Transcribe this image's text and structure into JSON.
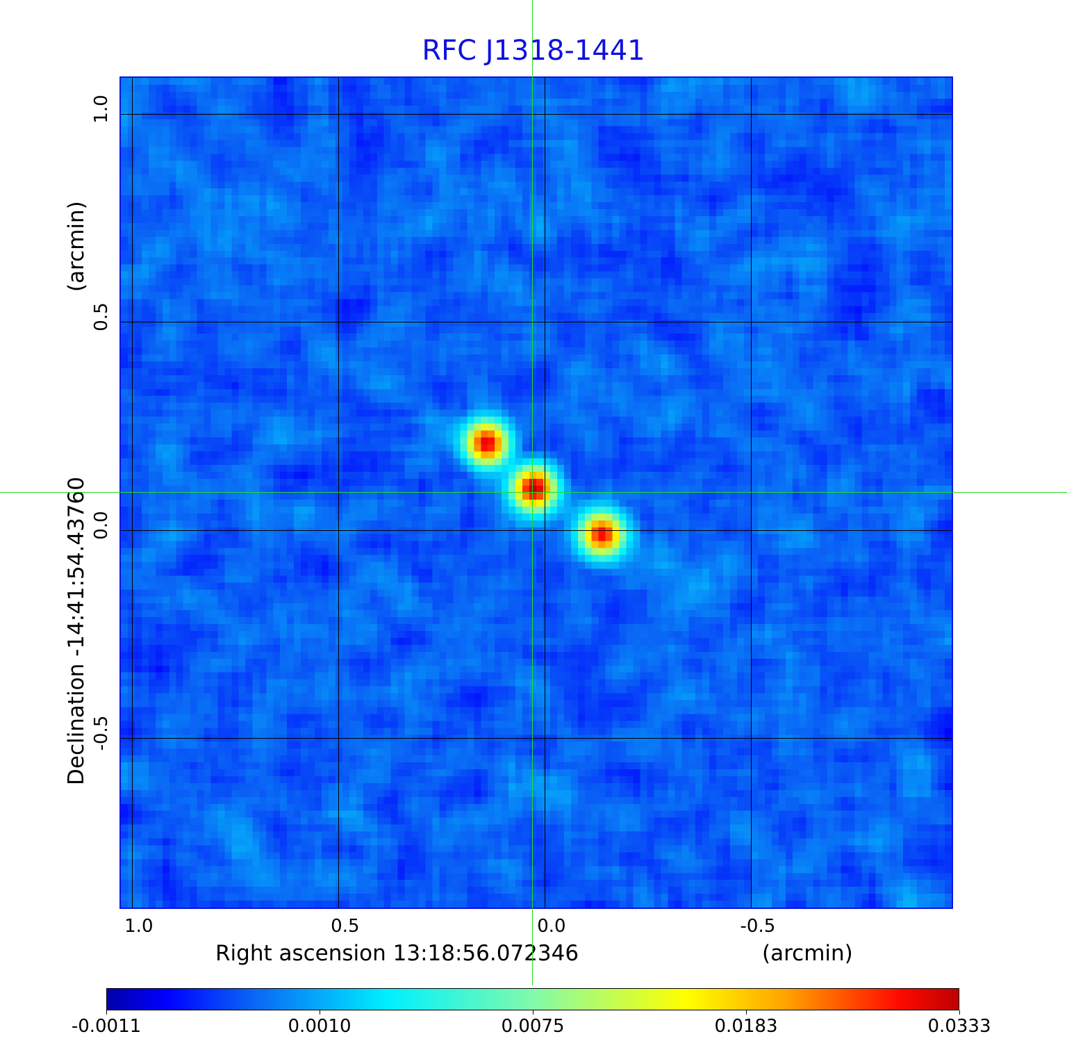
{
  "chart_data": {
    "type": "heatmap",
    "title": "RFC J1318-1441",
    "xlabel": "Right ascension  13:18:56.072346",
    "xunit": "(arcmin)",
    "ylabel": "Declination  -14:41:54.43760",
    "yunit": "(arcmin)",
    "xlim": [
      1.03,
      -0.99
    ],
    "ylim": [
      -0.91,
      1.09
    ],
    "xticks": [
      1.0,
      0.5,
      0.0,
      -0.5
    ],
    "xtick_labels": [
      "1.0",
      "0.5",
      "0.0",
      "-0.5"
    ],
    "yticks": [
      1.0,
      0.5,
      0.0,
      -0.5
    ],
    "ytick_labels": [
      "1.0",
      "0.5",
      "0.0",
      "-0.5"
    ],
    "grid": true,
    "colormap": "jet",
    "colorbar": {
      "placement": "bottom",
      "ticks": [
        -0.0011,
        0.001,
        0.0075,
        0.0183,
        0.0333
      ],
      "tick_labels": [
        "-0.0011",
        "0.0010",
        "0.0075",
        "0.0183",
        "0.0333"
      ]
    },
    "components": [
      {
        "ra_offset": 0.14,
        "dec_offset": 0.21,
        "peak": 0.031
      },
      {
        "ra_offset": 0.025,
        "dec_offset": 0.1,
        "peak": 0.0333
      },
      {
        "ra_offset": -0.14,
        "dec_offset": -0.01,
        "peak": 0.029
      }
    ],
    "background_level": 0.0003,
    "crosshair": {
      "ra_offset": 0.03,
      "dec_offset": 0.093,
      "color": "#22dd22"
    },
    "colors": {
      "title": "#1010e0",
      "frame": "#0a14e6",
      "grid": "#000000"
    }
  }
}
